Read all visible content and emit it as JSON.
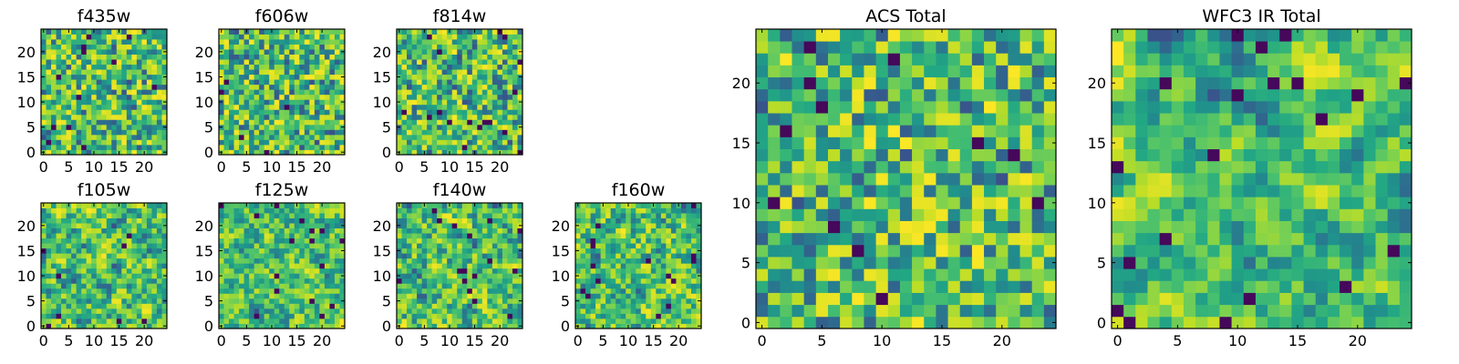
{
  "chart_data": [
    {
      "type": "heatmap",
      "title": "f435w",
      "grid_size": 25,
      "xlim": [
        0,
        24
      ],
      "ylim": [
        0,
        24
      ],
      "xticks": [
        0,
        5,
        10,
        15,
        20
      ],
      "yticks": [
        0,
        5,
        10,
        15,
        20
      ],
      "colormap": "viridis",
      "grid": false,
      "values": "random-noise",
      "noise_smoothness": 0
    },
    {
      "type": "heatmap",
      "title": "f606w",
      "grid_size": 25,
      "xlim": [
        0,
        24
      ],
      "ylim": [
        0,
        24
      ],
      "xticks": [
        0,
        5,
        10,
        15,
        20
      ],
      "yticks": [
        0,
        5,
        10,
        15,
        20
      ],
      "colormap": "viridis",
      "grid": false,
      "values": "random-noise",
      "noise_smoothness": 0
    },
    {
      "type": "heatmap",
      "title": "f814w",
      "grid_size": 25,
      "xlim": [
        0,
        24
      ],
      "ylim": [
        0,
        24
      ],
      "xticks": [
        0,
        5,
        10,
        15,
        20
      ],
      "yticks": [
        0,
        5,
        10,
        15,
        20
      ],
      "colormap": "viridis",
      "grid": false,
      "values": "random-noise",
      "noise_smoothness": 0
    },
    {
      "type": "heatmap",
      "title": "f105w",
      "grid_size": 25,
      "xlim": [
        0,
        24
      ],
      "ylim": [
        0,
        24
      ],
      "xticks": [
        0,
        5,
        10,
        15,
        20
      ],
      "yticks": [
        0,
        5,
        10,
        15,
        20
      ],
      "colormap": "viridis",
      "grid": false,
      "values": "random-noise",
      "noise_smoothness": 1
    },
    {
      "type": "heatmap",
      "title": "f125w",
      "grid_size": 25,
      "xlim": [
        0,
        24
      ],
      "ylim": [
        0,
        24
      ],
      "xticks": [
        0,
        5,
        10,
        15,
        20
      ],
      "yticks": [
        0,
        5,
        10,
        15,
        20
      ],
      "colormap": "viridis",
      "grid": false,
      "values": "random-noise",
      "noise_smoothness": 1
    },
    {
      "type": "heatmap",
      "title": "f140w",
      "grid_size": 25,
      "xlim": [
        0,
        24
      ],
      "ylim": [
        0,
        24
      ],
      "xticks": [
        0,
        5,
        10,
        15,
        20
      ],
      "yticks": [
        0,
        5,
        10,
        15,
        20
      ],
      "colormap": "viridis",
      "grid": false,
      "values": "random-noise",
      "noise_smoothness": 1
    },
    {
      "type": "heatmap",
      "title": "f160w",
      "grid_size": 25,
      "xlim": [
        0,
        24
      ],
      "ylim": [
        0,
        24
      ],
      "xticks": [
        0,
        5,
        10,
        15,
        20
      ],
      "yticks": [
        0,
        5,
        10,
        15,
        20
      ],
      "colormap": "viridis",
      "grid": false,
      "values": "random-noise",
      "noise_smoothness": 1
    },
    {
      "type": "heatmap",
      "title": "ACS Total",
      "grid_size": 25,
      "xlim": [
        0,
        24
      ],
      "ylim": [
        0,
        24
      ],
      "xticks": [
        0,
        5,
        10,
        15,
        20
      ],
      "yticks": [
        0,
        5,
        10,
        15,
        20
      ],
      "colormap": "viridis",
      "grid": false,
      "values": "random-noise",
      "noise_smoothness": 0
    },
    {
      "type": "heatmap",
      "title": "WFC3 IR Total",
      "grid_size": 25,
      "xlim": [
        0,
        24
      ],
      "ylim": [
        0,
        24
      ],
      "xticks": [
        0,
        5,
        10,
        15,
        20
      ],
      "yticks": [
        0,
        5,
        10,
        15,
        20
      ],
      "colormap": "viridis",
      "grid": false,
      "values": "random-noise",
      "noise_smoothness": 2
    }
  ]
}
